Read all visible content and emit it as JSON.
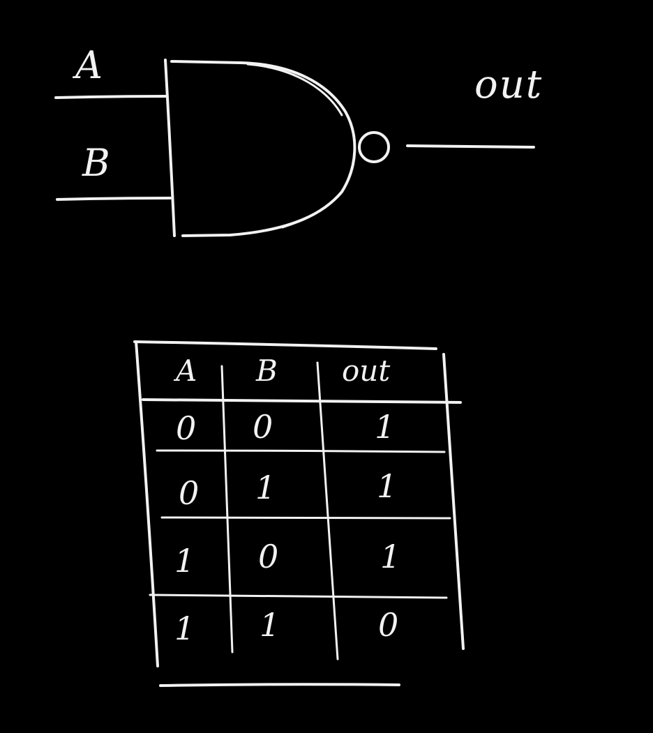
{
  "gate": {
    "input_a_label": "A",
    "input_b_label": "B",
    "output_label": "out"
  },
  "truth_table": {
    "headers": [
      "A",
      "B",
      "out"
    ],
    "rows": [
      [
        "0",
        "0",
        "1"
      ],
      [
        "0",
        "1",
        "1"
      ],
      [
        "1",
        "0",
        "1"
      ],
      [
        "1",
        "1",
        "0"
      ]
    ]
  },
  "colors": {
    "background": "#000000",
    "chalk": "#f2f2f2"
  }
}
